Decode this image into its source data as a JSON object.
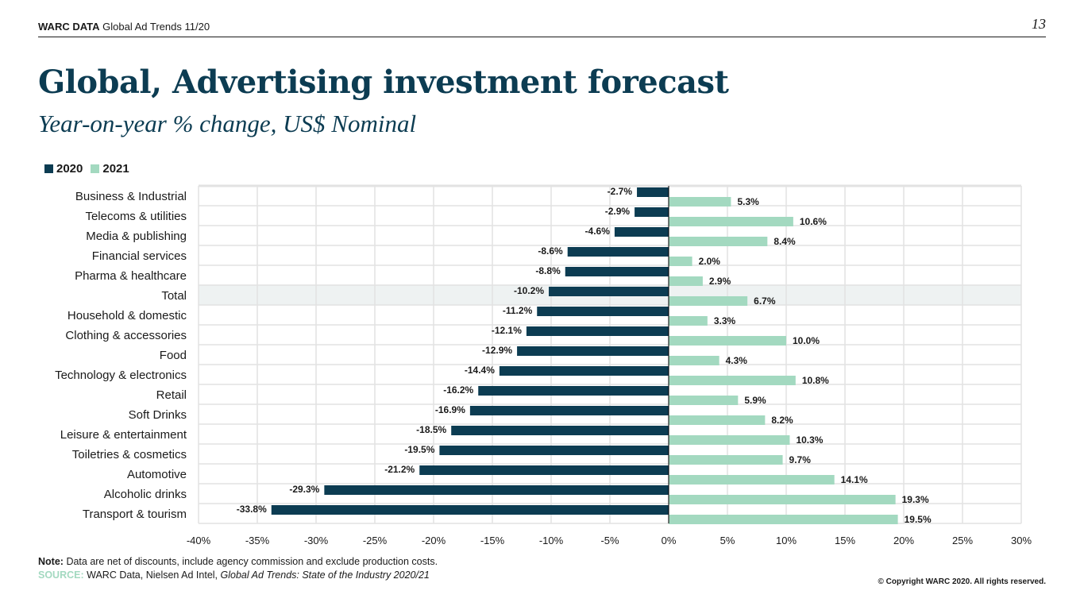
{
  "header": {
    "brand": "WARC DATA",
    "publication": "Global Ad Trends 11/20",
    "page_number": "13"
  },
  "title": "Global, Advertising investment forecast",
  "subtitle": "Year-on-year % change, US$ Nominal",
  "colors": {
    "series_2020": "#0c3c52",
    "series_2021": "#a3d9c0",
    "title": "#0c3c52",
    "highlight_row": "#eef2f2"
  },
  "chart_data": {
    "type": "bar",
    "orientation": "horizontal",
    "title": "Global, Advertising investment forecast",
    "subtitle": "Year-on-year % change, US$ Nominal",
    "xlabel": "",
    "ylabel": "",
    "xlim": [
      -40,
      30
    ],
    "xticks": [
      -40,
      -35,
      -30,
      -25,
      -20,
      -15,
      -10,
      -5,
      0,
      5,
      10,
      15,
      20,
      25,
      30
    ],
    "xtick_labels": [
      "-40%",
      "-35%",
      "-30%",
      "-25%",
      "-20%",
      "-15%",
      "-10%",
      "-5%",
      "0%",
      "5%",
      "10%",
      "15%",
      "20%",
      "25%",
      "30%"
    ],
    "grid": true,
    "legend_position": "top-left",
    "highlighted_category": "Total",
    "categories": [
      "Business & Industrial",
      "Telecoms & utilities",
      "Media & publishing",
      "Financial services",
      "Pharma & healthcare",
      "Total",
      "Household & domestic",
      "Clothing & accessories",
      "Food",
      "Technology & electronics",
      "Retail",
      "Soft Drinks",
      "Leisure & entertainment",
      "Toiletries & cosmetics",
      "Automotive",
      "Alcoholic drinks",
      "Transport & tourism"
    ],
    "series": [
      {
        "name": "2020",
        "values": [
          -2.7,
          -2.9,
          -4.6,
          -8.6,
          -8.8,
          -10.2,
          -11.2,
          -12.1,
          -12.9,
          -14.4,
          -16.2,
          -16.9,
          -18.5,
          -19.5,
          -21.2,
          -29.3,
          -33.8
        ],
        "labels": [
          "-2.7%",
          "-2.9%",
          "-4.6%",
          "-8.6%",
          "-8.8%",
          "-10.2%",
          "-11.2%",
          "-12.1%",
          "-12.9%",
          "-14.4%",
          "-16.2%",
          "-16.9%",
          "-18.5%",
          "-19.5%",
          "-21.2%",
          "-29.3%",
          "-33.8%"
        ]
      },
      {
        "name": "2021",
        "values": [
          5.3,
          10.6,
          8.4,
          2.0,
          2.9,
          6.7,
          3.3,
          10.0,
          4.3,
          10.8,
          5.9,
          8.2,
          10.3,
          9.7,
          14.1,
          19.3,
          19.5
        ],
        "labels": [
          "5.3%",
          "10.6%",
          "8.4%",
          "2.0%",
          "2.9%",
          "6.7%",
          "3.3%",
          "10.0%",
          "4.3%",
          "10.8%",
          "5.9%",
          "8.2%",
          "10.3%",
          "9.7%",
          "14.1%",
          "19.3%",
          "19.5%"
        ]
      }
    ]
  },
  "legend": {
    "items": [
      {
        "label": "2020"
      },
      {
        "label": "2021"
      }
    ]
  },
  "footer": {
    "note_label": "Note:",
    "note_text": "Data are net of discounts, include agency commission and exclude production costs.",
    "source_label": "SOURCE:",
    "source_text": "WARC Data, Nielsen Ad Intel,",
    "source_title": "Global Ad Trends: State of the Industry 2020/21",
    "copyright": "© Copyright WARC 2020. All rights reserved."
  }
}
